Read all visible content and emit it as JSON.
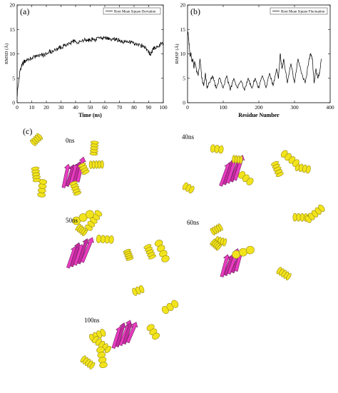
{
  "panels": {
    "a_label": "(a)",
    "b_label": "(b)",
    "c_label": "(c)"
  },
  "chart_data": [
    {
      "type": "line",
      "panel": "(a)",
      "title": "",
      "xlabel": "Time (ns)",
      "ylabel": "RMSD (Å)",
      "xlim": [
        0,
        100
      ],
      "ylim": [
        0,
        20
      ],
      "xticks": [
        "0",
        "10",
        "20",
        "30",
        "40",
        "50",
        "60",
        "70",
        "80",
        "90",
        "100"
      ],
      "yticks": [
        "0",
        "5",
        "10",
        "15",
        "20"
      ],
      "grid": false,
      "legend": "top-right",
      "series": [
        {
          "name": "Root Mean Square Deviation",
          "color": "#000000",
          "x": [
            0,
            1,
            2,
            3,
            4,
            5,
            6,
            8,
            10,
            12,
            14,
            16,
            18,
            20,
            22,
            24,
            26,
            28,
            30,
            32,
            34,
            36,
            38,
            40,
            42,
            44,
            46,
            48,
            50,
            52,
            54,
            56,
            58,
            60,
            62,
            64,
            66,
            68,
            70,
            72,
            74,
            76,
            78,
            80,
            82,
            84,
            86,
            88,
            90,
            91,
            92,
            93,
            94,
            96,
            98,
            100
          ],
          "values": [
            1.5,
            4,
            6.5,
            7.5,
            8,
            8.5,
            8.7,
            8.9,
            9,
            9.3,
            9.5,
            9.8,
            9.6,
            10.1,
            10.6,
            10.4,
            10.9,
            11.1,
            11.3,
            11.6,
            11.9,
            12.1,
            12.4,
            12.6,
            12.3,
            12.5,
            12.8,
            12.7,
            12.9,
            13.1,
            12.9,
            13.2,
            13.1,
            13.3,
            13.2,
            13,
            13.1,
            12.9,
            12.8,
            12.6,
            12.5,
            12.3,
            12.4,
            12.1,
            12,
            11.8,
            11.6,
            11.1,
            10.4,
            9.8,
            10.3,
            10.9,
            11.3,
            11.6,
            12,
            12.1
          ]
        }
      ]
    },
    {
      "type": "line",
      "panel": "(b)",
      "title": "",
      "xlabel": "Residue Number",
      "ylabel": "RMSF (Å)",
      "xlim": [
        0,
        400
      ],
      "ylim": [
        0,
        20
      ],
      "xticks": [
        "0",
        "100",
        "200",
        "300",
        "400"
      ],
      "yticks": [
        "0",
        "5",
        "10",
        "15",
        "20"
      ],
      "grid": false,
      "legend": "top-right",
      "series": [
        {
          "name": "Root Mean Square Fluctuation",
          "color": "#000000",
          "x": [
            1,
            3,
            5,
            7,
            10,
            12,
            15,
            18,
            20,
            25,
            30,
            35,
            40,
            45,
            50,
            55,
            60,
            70,
            80,
            90,
            100,
            110,
            120,
            130,
            140,
            150,
            160,
            170,
            180,
            190,
            200,
            210,
            220,
            230,
            240,
            250,
            255,
            260,
            265,
            270,
            280,
            290,
            300,
            310,
            320,
            330,
            340,
            345,
            350,
            355,
            360,
            365,
            370,
            375
          ],
          "values": [
            14.5,
            13,
            11.5,
            9.5,
            10,
            8.5,
            9,
            7,
            8.5,
            6.5,
            5.5,
            9,
            5,
            3.5,
            6,
            3,
            4,
            5.5,
            3,
            5,
            3,
            5.5,
            2.5,
            5,
            3,
            4.5,
            2.5,
            5,
            3,
            5,
            3,
            5.5,
            3,
            6,
            3.5,
            7,
            5,
            10,
            7,
            9,
            4,
            8,
            4,
            9,
            6,
            4,
            8.5,
            10,
            9,
            4,
            7,
            5,
            6,
            9
          ]
        }
      ]
    }
  ],
  "snapshots": [
    {
      "label": "0ns"
    },
    {
      "label": "40ns"
    },
    {
      "label": "50ns"
    },
    {
      "label": "60ns"
    },
    {
      "label": "100ns"
    }
  ],
  "colors": {
    "coil": "#2fd79a",
    "helix": "#f2e41c",
    "helix_dark": "#9a8a10",
    "sheet": "#e83cc0",
    "sheet_dark": "#5a1a4a"
  }
}
